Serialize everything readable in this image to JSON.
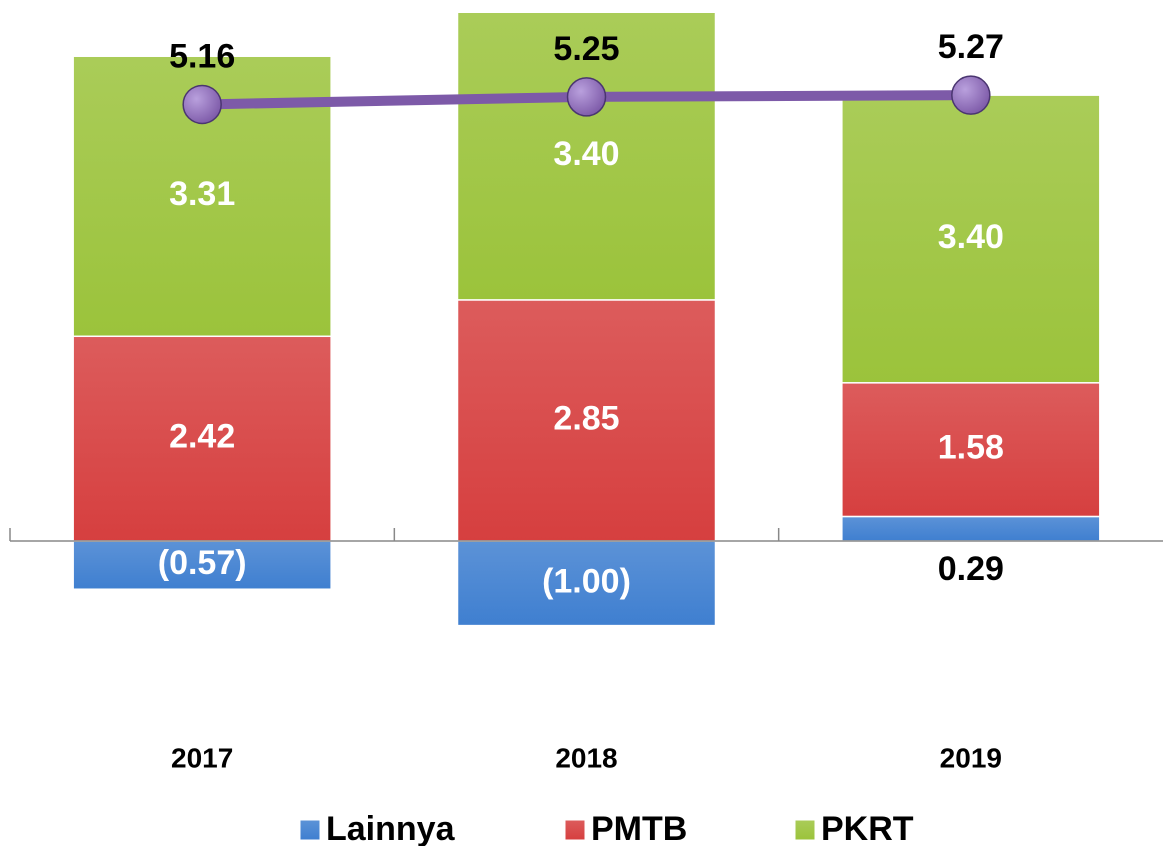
{
  "chart_data": {
    "type": "bar",
    "stacked": true,
    "categories": [
      "2017",
      "2018",
      "2019"
    ],
    "series": [
      {
        "name": "Lainnya",
        "color": "#3f7fd0",
        "values": [
          -0.57,
          -1.0,
          0.29
        ],
        "value_labels": [
          "(0.57)",
          "(1.00)",
          "0.29"
        ]
      },
      {
        "name": "PMTB",
        "color": "#d63f3f",
        "values": [
          2.42,
          2.85,
          1.58
        ],
        "value_labels": [
          "2.42",
          "2.85",
          "1.58"
        ]
      },
      {
        "name": "PKRT",
        "color": "#9bc33b",
        "values": [
          3.31,
          3.4,
          3.4
        ],
        "value_labels": [
          "3.31",
          "3.40",
          "3.40"
        ]
      }
    ],
    "line": {
      "type": "line",
      "color": "#7d5aa8",
      "values": [
        5.16,
        5.25,
        5.27
      ]
    }
  }
}
